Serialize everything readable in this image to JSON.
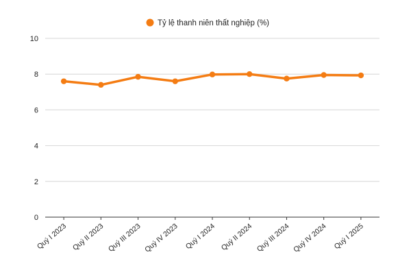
{
  "chart_data": {
    "type": "line",
    "categories": [
      "Quý I 2023",
      "Quý II 2023",
      "Quý III 2023",
      "Quý IV 2023",
      "Quý I 2024",
      "Quý II 2024",
      "Quý III 2024",
      "Quý IV 2024",
      "Quý I 2025"
    ],
    "series": [
      {
        "name": "Tỷ lệ thanh niên thất nghiệp (%)",
        "values": [
          7.6,
          7.4,
          7.85,
          7.6,
          7.98,
          8.0,
          7.75,
          7.95,
          7.93
        ],
        "color": "#f47c13"
      }
    ],
    "title": "",
    "xlabel": "",
    "ylabel": "",
    "ylim": [
      0,
      10
    ],
    "yticks": [
      "0",
      "2",
      "4",
      "6",
      "8",
      "10"
    ],
    "grid": true,
    "legend_position": "top-center"
  }
}
